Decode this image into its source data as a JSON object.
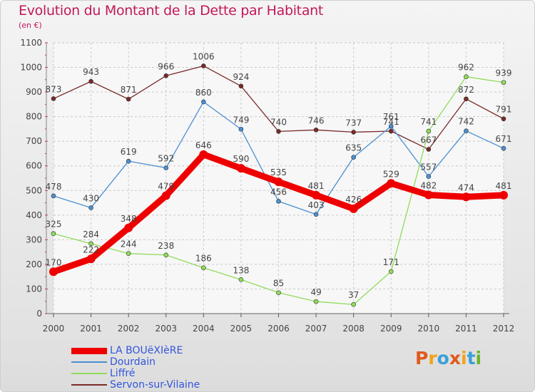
{
  "header": {
    "title": "Evolution du Montant de la Dette par Habitant",
    "subtitle": "(en €)"
  },
  "logo": {
    "text": "Proxiti",
    "colors": [
      "#e05a1e",
      "#f2a31b",
      "#3aa0d8",
      "#e05a1e",
      "#f2a31b",
      "#3aa0d8",
      "#6bb52a"
    ]
  },
  "chart_data": {
    "type": "line",
    "title": "Evolution du Montant de la Dette par Habitant",
    "subtitle": "(en €)",
    "x": [
      "2000",
      "2001",
      "2002",
      "2003",
      "2004",
      "2005",
      "2006",
      "2007",
      "2008",
      "2009",
      "2010",
      "2011",
      "2012"
    ],
    "ylim": [
      0,
      1100
    ],
    "yticks": [
      0,
      100,
      200,
      300,
      400,
      500,
      600,
      700,
      800,
      900,
      1000,
      1100
    ],
    "grid": true,
    "legend_position": "bottom-left",
    "series": [
      {
        "name": "Servon-sur-Vilaine",
        "color": "#7a2a2a",
        "values": [
          873,
          943,
          871,
          966,
          1006,
          924,
          740,
          746,
          737,
          741,
          667,
          872,
          791
        ]
      },
      {
        "name": "Dourdain",
        "color": "#4a8fd0",
        "values": [
          478,
          430,
          619,
          592,
          860,
          749,
          456,
          403,
          635,
          761,
          557,
          742,
          671
        ]
      },
      {
        "name": "Liffré",
        "color": "#8fdc5a",
        "values": [
          325,
          284,
          244,
          238,
          186,
          138,
          85,
          49,
          37,
          171,
          741,
          962,
          939
        ]
      },
      {
        "name": "LA BOUëXIèRE",
        "color": "#ee0000",
        "values": [
          170,
          222,
          348,
          479,
          646,
          590,
          535,
          481,
          426,
          529,
          482,
          474,
          481
        ]
      }
    ],
    "legend_order": [
      "LA BOUëXIèRE",
      "Dourdain",
      "Liffré",
      "Servon-sur-Vilaine"
    ]
  }
}
